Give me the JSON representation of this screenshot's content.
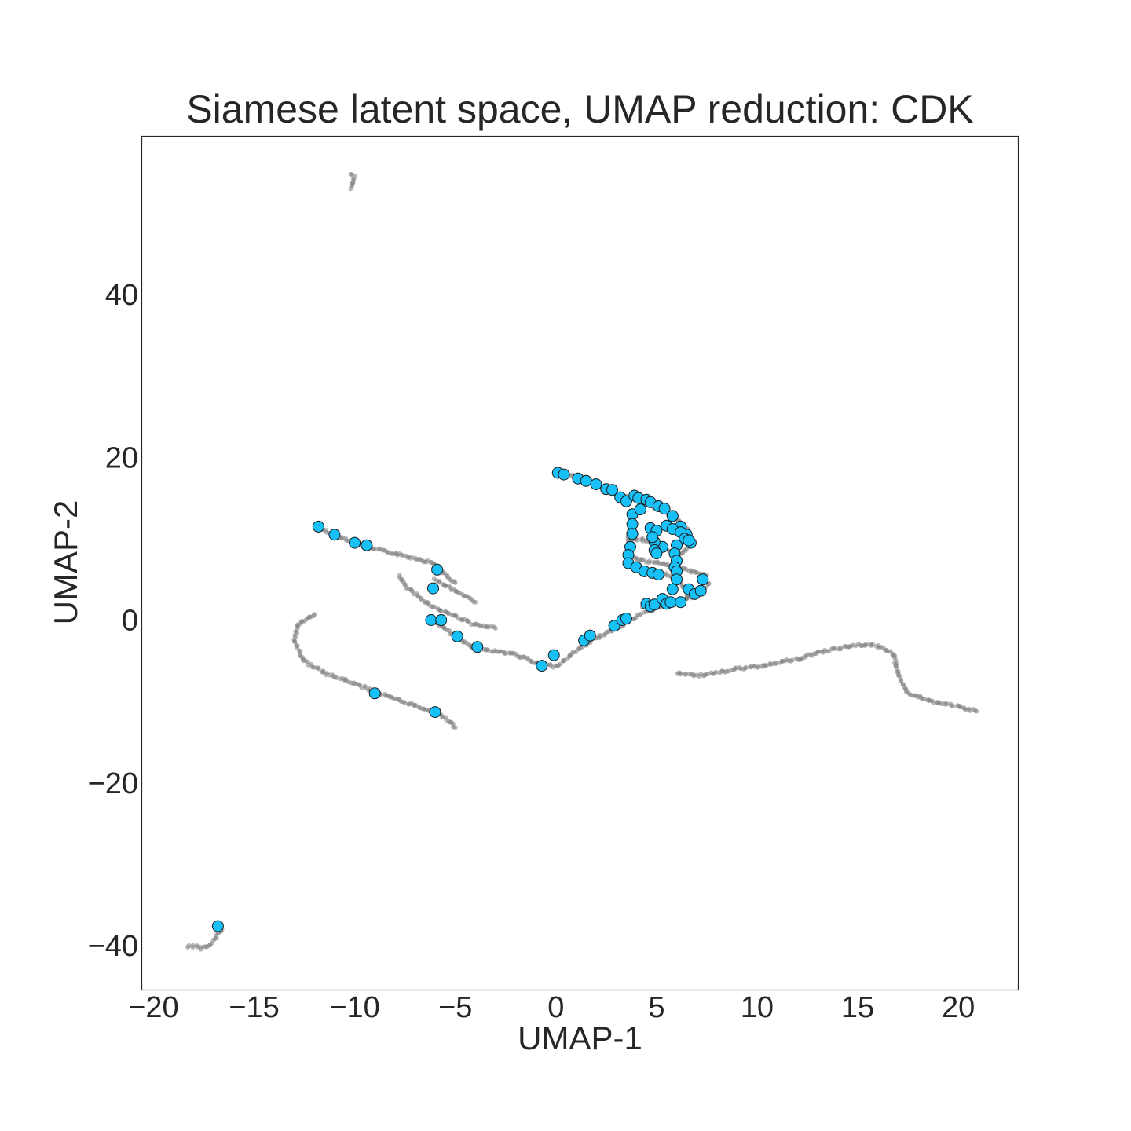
{
  "chart_data": {
    "type": "scatter",
    "title": "Siamese latent space, UMAP reduction: CDK",
    "xlabel": "UMAP-1",
    "ylabel": "UMAP-2",
    "xlim": [
      -20.6,
      23.0
    ],
    "ylim": [
      -45.5,
      59.5
    ],
    "xticks": [
      -20,
      -15,
      -10,
      -5,
      0,
      5,
      10,
      15,
      20
    ],
    "xtick_labels": [
      "−20",
      "−15",
      "−10",
      "−5",
      "0",
      "5",
      "10",
      "15",
      "20"
    ],
    "yticks": [
      -40,
      -20,
      0,
      20,
      40
    ],
    "ytick_labels": [
      "−40",
      "−20",
      "0",
      "20",
      "40"
    ],
    "grid": false,
    "colors": {
      "background_points": "#808080",
      "highlight_points": "#17c0f7",
      "highlight_edge": "#1a1a1a",
      "axes": "#262626"
    },
    "series": [
      {
        "values_desc": "background",
        "color": "#808080",
        "curves": [
          [
            [
              -10.2,
              54.8
            ],
            [
              -10.0,
              54.6
            ],
            [
              -10.1,
              53.6
            ],
            [
              -10.2,
              53.0
            ]
          ],
          [
            [
              -18.3,
              -40.2
            ],
            [
              -18.0,
              -40.0
            ],
            [
              -17.6,
              -40.3
            ],
            [
              -17.2,
              -40.0
            ],
            [
              -16.9,
              -39.0
            ],
            [
              -16.6,
              -38.0
            ]
          ],
          [
            [
              -11.9,
              11.4
            ],
            [
              -11.0,
              10.5
            ],
            [
              -10.0,
              9.6
            ],
            [
              -9.0,
              8.7
            ],
            [
              -8.0,
              8.2
            ],
            [
              -7.0,
              7.6
            ],
            [
              -6.1,
              7.0
            ],
            [
              -5.6,
              5.8
            ],
            [
              -5.0,
              4.6
            ]
          ],
          [
            [
              -7.8,
              5.4
            ],
            [
              -7.4,
              4.0
            ],
            [
              -6.8,
              2.8
            ],
            [
              -6.0,
              1.5
            ],
            [
              -5.0,
              0.5
            ],
            [
              -4.0,
              -0.6
            ],
            [
              -3.0,
              -1.0
            ]
          ],
          [
            [
              -6.0,
              5.0
            ],
            [
              -5.0,
              3.6
            ],
            [
              -4.2,
              2.6
            ],
            [
              -4.0,
              2.2
            ]
          ],
          [
            [
              -12.0,
              0.7
            ],
            [
              -12.8,
              -0.5
            ],
            [
              -13.0,
              -2.8
            ],
            [
              -12.5,
              -5.0
            ],
            [
              -11.5,
              -6.5
            ],
            [
              -10.0,
              -7.8
            ],
            [
              -9.0,
              -8.8
            ],
            [
              -8.0,
              -9.7
            ],
            [
              -7.0,
              -10.5
            ],
            [
              -6.0,
              -11.3
            ],
            [
              -5.4,
              -12.2
            ],
            [
              -5.0,
              -13.2
            ]
          ],
          [
            [
              -6.0,
              -0.2
            ],
            [
              -5.0,
              -2.0
            ],
            [
              -4.0,
              -3.5
            ],
            [
              -2.0,
              -4.2
            ],
            [
              -1.0,
              -5.3
            ],
            [
              0.0,
              -5.7
            ],
            [
              1.0,
              -3.8
            ],
            [
              2.0,
              -2.2
            ],
            [
              3.0,
              -1.0
            ],
            [
              4.0,
              0.4
            ],
            [
              5.0,
              1.5
            ],
            [
              6.0,
              2.3
            ],
            [
              7.0,
              3.0
            ],
            [
              7.6,
              4.5
            ]
          ],
          [
            [
              0.0,
              18.2
            ],
            [
              1.0,
              17.6
            ],
            [
              2.0,
              16.8
            ],
            [
              3.0,
              15.5
            ],
            [
              4.0,
              14.8
            ],
            [
              5.0,
              13.8
            ],
            [
              6.0,
              12.5
            ],
            [
              6.6,
              11.0
            ],
            [
              6.8,
              9.5
            ],
            [
              6.2,
              8.0
            ],
            [
              5.0,
              9.2
            ],
            [
              4.2,
              10.0
            ],
            [
              3.6,
              9.6
            ],
            [
              3.6,
              8.0
            ],
            [
              4.5,
              7.2
            ],
            [
              5.5,
              6.8
            ],
            [
              6.5,
              6.2
            ],
            [
              7.5,
              5.5
            ]
          ],
          [
            [
              3.8,
              12.0
            ],
            [
              3.6,
              10.5
            ],
            [
              3.6,
              8.5
            ],
            [
              3.6,
              7.0
            ],
            [
              4.4,
              6.2
            ],
            [
              5.2,
              5.8
            ],
            [
              6.0,
              5.2
            ],
            [
              6.4,
              3.8
            ],
            [
              6.6,
              2.8
            ],
            [
              6.0,
              2.0
            ],
            [
              5.0,
              1.8
            ],
            [
              4.3,
              1.6
            ]
          ],
          [
            [
              6.0,
              -6.5
            ],
            [
              7.0,
              -6.8
            ],
            [
              8.0,
              -6.5
            ],
            [
              9.0,
              -6.0
            ],
            [
              10.0,
              -5.7
            ],
            [
              11.0,
              -5.2
            ],
            [
              12.0,
              -4.8
            ],
            [
              13.0,
              -4.0
            ],
            [
              14.0,
              -3.5
            ],
            [
              15.0,
              -3.0
            ],
            [
              16.0,
              -3.2
            ],
            [
              16.8,
              -4.2
            ],
            [
              17.0,
              -6.5
            ],
            [
              17.5,
              -9.0
            ],
            [
              19.0,
              -10.2
            ],
            [
              20.0,
              -10.6
            ],
            [
              20.9,
              -11.2
            ]
          ]
        ]
      },
      {
        "values_desc": "highlight",
        "color": "#17c0f7",
        "points": [
          [
            -11.8,
            11.5
          ],
          [
            -11.0,
            10.5
          ],
          [
            -10.0,
            9.5
          ],
          [
            -9.4,
            9.2
          ],
          [
            -5.9,
            6.2
          ],
          [
            -6.1,
            3.9
          ],
          [
            -6.2,
            0.0
          ],
          [
            -5.7,
            0.0
          ],
          [
            -4.9,
            -2.0
          ],
          [
            -3.9,
            -3.3
          ],
          [
            -9.0,
            -9.0
          ],
          [
            -6.0,
            -11.3
          ],
          [
            -16.8,
            -37.6
          ],
          [
            -0.7,
            -5.6
          ],
          [
            -0.1,
            -4.3
          ],
          [
            1.4,
            -2.5
          ],
          [
            1.7,
            -1.9
          ],
          [
            2.9,
            -0.7
          ],
          [
            3.3,
            0.0
          ],
          [
            3.5,
            0.2
          ],
          [
            0.1,
            18.1
          ],
          [
            0.4,
            17.9
          ],
          [
            1.1,
            17.4
          ],
          [
            1.5,
            17.1
          ],
          [
            2.0,
            16.7
          ],
          [
            2.5,
            16.1
          ],
          [
            2.8,
            16.0
          ],
          [
            3.2,
            15.1
          ],
          [
            3.5,
            14.6
          ],
          [
            3.9,
            15.3
          ],
          [
            4.1,
            15.0
          ],
          [
            4.5,
            14.8
          ],
          [
            4.7,
            14.5
          ],
          [
            5.1,
            14.0
          ],
          [
            5.4,
            13.7
          ],
          [
            5.8,
            12.8
          ],
          [
            6.2,
            11.5
          ],
          [
            6.5,
            10.5
          ],
          [
            6.7,
            9.5
          ],
          [
            3.8,
            13.0
          ],
          [
            4.2,
            13.6
          ],
          [
            3.8,
            11.8
          ],
          [
            3.8,
            10.6
          ],
          [
            3.7,
            9.0
          ],
          [
            3.6,
            8.0
          ],
          [
            3.6,
            7.0
          ],
          [
            4.0,
            6.5
          ],
          [
            4.4,
            6.0
          ],
          [
            4.8,
            5.8
          ],
          [
            5.1,
            5.6
          ],
          [
            4.7,
            11.3
          ],
          [
            5.0,
            11.0
          ],
          [
            5.5,
            11.6
          ],
          [
            5.8,
            11.2
          ],
          [
            6.2,
            10.8
          ],
          [
            6.4,
            10.0
          ],
          [
            6.6,
            9.8
          ],
          [
            6.0,
            9.2
          ],
          [
            5.3,
            9.0
          ],
          [
            4.9,
            9.6
          ],
          [
            4.8,
            10.2
          ],
          [
            4.9,
            8.6
          ],
          [
            5.0,
            8.2
          ],
          [
            5.9,
            8.2
          ],
          [
            6.0,
            7.3
          ],
          [
            5.9,
            6.5
          ],
          [
            6.0,
            6.0
          ],
          [
            6.0,
            5.0
          ],
          [
            5.8,
            3.8
          ],
          [
            6.6,
            3.8
          ],
          [
            6.9,
            3.2
          ],
          [
            7.2,
            3.6
          ],
          [
            7.3,
            5.0
          ],
          [
            4.5,
            2.0
          ],
          [
            4.7,
            1.7
          ],
          [
            4.9,
            1.9
          ],
          [
            5.3,
            2.6
          ],
          [
            5.5,
            2.0
          ],
          [
            5.7,
            2.2
          ],
          [
            6.2,
            2.2
          ]
        ]
      }
    ]
  }
}
